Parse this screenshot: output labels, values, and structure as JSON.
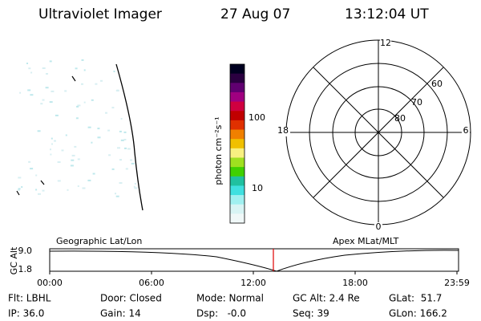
{
  "header": {
    "instrument": "Ultraviolet Imager",
    "date": "27 Aug 07",
    "time": "13:12:04 UT"
  },
  "colorbar": {
    "label": "photon cm⁻²s⁻¹",
    "ticks": [
      "100",
      "10"
    ]
  },
  "polar": {
    "top": "12",
    "bottom": "0",
    "left": "18",
    "right": "6",
    "rings": [
      "60",
      "70",
      "80"
    ]
  },
  "altitude_plot": {
    "y_label": "GC Alt",
    "y_ticks": [
      "9.0",
      "1.8"
    ],
    "left_label": "Geographic Lat/Lon",
    "right_label": "Apex MLat/MLT",
    "x_ticks": [
      "00:00",
      "06:00",
      "12:00",
      "18:00",
      "23:59"
    ]
  },
  "info": {
    "rows": [
      [
        "Flt: LBHL",
        "Door: Closed",
        "Mode: Normal",
        "GC Alt: 2.4 Re",
        "GLat:  51.7"
      ],
      [
        "IP: 36.0",
        "Gain: 14",
        "Dsp:   -0.0",
        "Seq: 39",
        "GLon: 166.2"
      ]
    ]
  }
}
